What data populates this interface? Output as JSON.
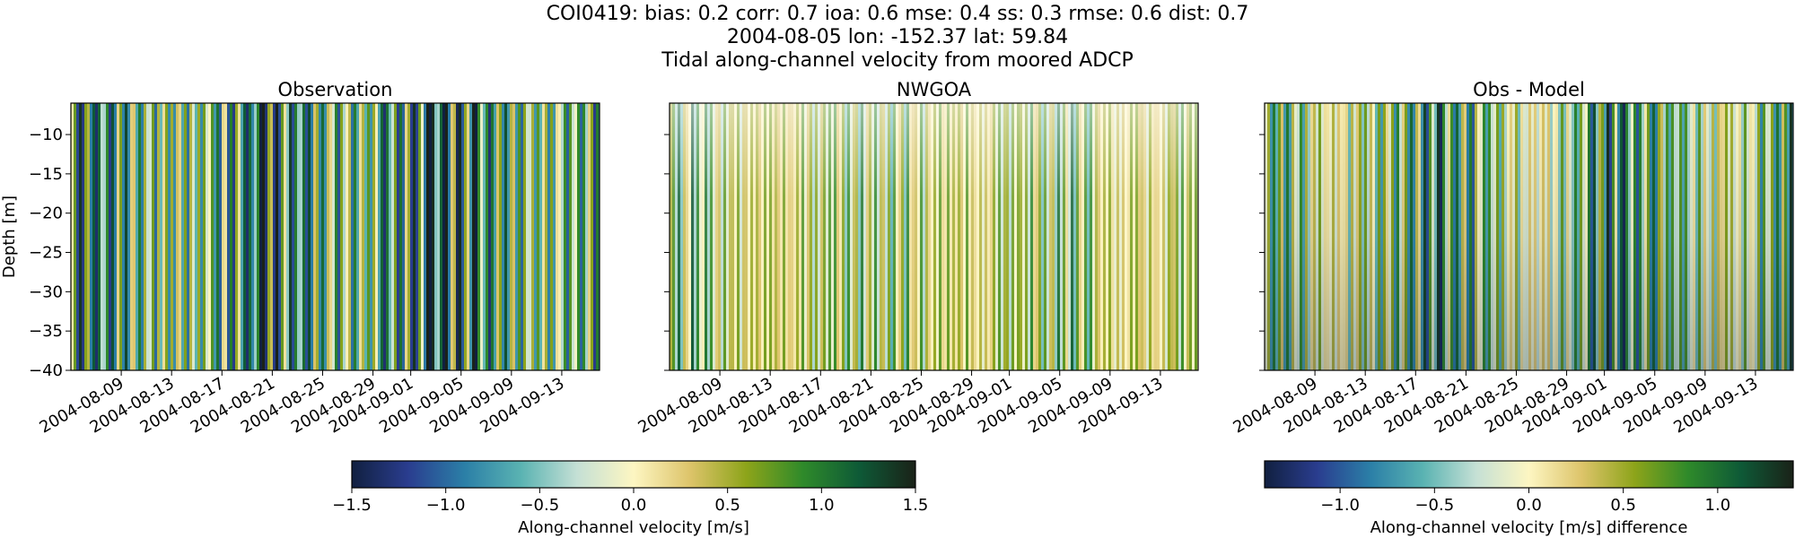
{
  "header": {
    "line1": "COI0419: bias: 0.2  corr: 0.7  ioa: 0.6  mse: 0.4  ss: 0.3  rmse: 0.6  dist: 0.7",
    "line2": "2004-08-05 lon: -152.37 lat: 59.84",
    "line3": "Tidal along-channel velocity from moored ADCP"
  },
  "chart_data": [
    {
      "type": "heatmap",
      "title": "Observation",
      "ylabel": "Depth [m]",
      "xlabel": "",
      "ylim": [
        -40,
        -6
      ],
      "yticks": [
        -10,
        -15,
        -20,
        -25,
        -30,
        -35,
        -40
      ],
      "xticks": [
        "2004-08-09",
        "2004-08-13",
        "2004-08-17",
        "2004-08-21",
        "2004-08-25",
        "2004-08-29",
        "2004-09-01",
        "2004-09-05",
        "2004-09-09",
        "2004-09-13"
      ],
      "x_range": [
        "2004-08-05",
        "2004-09-16"
      ],
      "colormap": "delta",
      "clim": [
        -1.5,
        1.5
      ],
      "pattern": "strong tidal oscillation, alternating bands of roughly -1.5 to +1.5 m/s, darker (stronger) mid-period near 2004-08-29 to 2004-09-01"
    },
    {
      "type": "heatmap",
      "title": "NWGOA",
      "ylabel": "",
      "xlabel": "",
      "ylim": [
        -40,
        -6
      ],
      "xticks": [
        "2004-08-09",
        "2004-08-13",
        "2004-08-17",
        "2004-08-21",
        "2004-08-25",
        "2004-08-29",
        "2004-09-01",
        "2004-09-05",
        "2004-09-09",
        "2004-09-13"
      ],
      "x_range": [
        "2004-08-05",
        "2004-09-16"
      ],
      "colormap": "delta",
      "clim": [
        -1.5,
        1.5
      ],
      "pattern": "weaker tidal oscillation, mostly -0.5 to +0.8 m/s, paler near the surface"
    },
    {
      "type": "heatmap",
      "title": "Obs - Model",
      "ylabel": "",
      "xlabel": "",
      "ylim": [
        -40,
        -6
      ],
      "xticks": [
        "2004-08-09",
        "2004-08-13",
        "2004-08-17",
        "2004-08-21",
        "2004-08-25",
        "2004-08-29",
        "2004-09-01",
        "2004-09-05",
        "2004-09-09",
        "2004-09-13"
      ],
      "x_range": [
        "2004-08-05",
        "2004-09-16"
      ],
      "colormap": "delta",
      "clim": [
        -1.4,
        1.4
      ],
      "pattern": "alternating differences of roughly -1.4 to +1.4 m/s, stronger near the bottom"
    }
  ],
  "colorbars": [
    {
      "label": "Along-channel velocity [m/s]",
      "ticks": [
        "−1.5",
        "−1.0",
        "−0.5",
        "0.0",
        "0.5",
        "1.0",
        "1.5"
      ],
      "tick_values": [
        -1.5,
        -1.0,
        -0.5,
        0.0,
        0.5,
        1.0,
        1.5
      ],
      "range": [
        -1.5,
        1.5
      ]
    },
    {
      "label": "Along-channel velocity [m/s] difference",
      "ticks": [
        "−1.0",
        "−0.5",
        "0.0",
        "0.5",
        "1.0"
      ],
      "tick_values": [
        -1.0,
        -0.5,
        0.0,
        0.5,
        1.0
      ],
      "range": [
        -1.4,
        1.4
      ]
    }
  ],
  "colors": {
    "cmap_stops": [
      "#112040",
      "#2a3d8f",
      "#2b7fa7",
      "#5ab3b2",
      "#c5e0d5",
      "#fdf6c2",
      "#ddc46a",
      "#8da41a",
      "#2f8a2a",
      "#0e5a37",
      "#1a2218"
    ]
  }
}
